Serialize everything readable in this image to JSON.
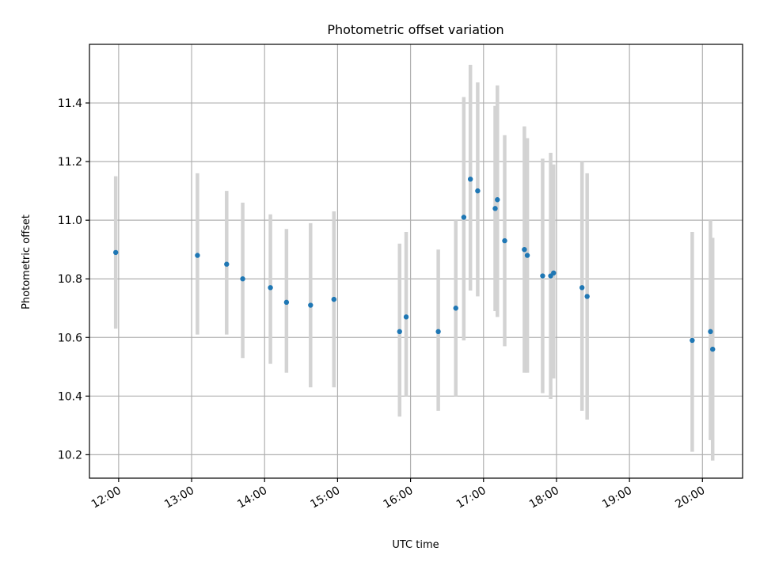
{
  "chart_data": {
    "type": "scatter",
    "title": "Photometric offset variation",
    "xlabel": "UTC time",
    "ylabel": "Photometric offset",
    "x_unit": "hours UTC",
    "xlim": [
      11.6,
      20.55
    ],
    "ylim": [
      10.12,
      11.6
    ],
    "grid": true,
    "x_ticks": [
      12,
      13,
      14,
      15,
      16,
      17,
      18,
      19,
      20
    ],
    "x_tick_labels": [
      "12:00",
      "13:00",
      "14:00",
      "15:00",
      "16:00",
      "17:00",
      "18:00",
      "19:00",
      "20:00"
    ],
    "y_ticks": [
      10.2,
      10.4,
      10.6,
      10.8,
      11.0,
      11.2,
      11.4
    ],
    "y_tick_labels": [
      "10.2",
      "10.4",
      "10.6",
      "10.8",
      "11.0",
      "11.2",
      "11.4"
    ],
    "point_color": "#1f77b4",
    "errorbar_color": "#d3d3d3",
    "points": [
      {
        "x": 11.96,
        "y": 10.89,
        "err_low": 10.63,
        "err_high": 11.15
      },
      {
        "x": 13.08,
        "y": 10.88,
        "err_low": 10.61,
        "err_high": 11.16
      },
      {
        "x": 13.48,
        "y": 10.85,
        "err_low": 10.61,
        "err_high": 11.1
      },
      {
        "x": 13.7,
        "y": 10.8,
        "err_low": 10.53,
        "err_high": 11.06
      },
      {
        "x": 14.08,
        "y": 10.77,
        "err_low": 10.51,
        "err_high": 11.02
      },
      {
        "x": 14.3,
        "y": 10.72,
        "err_low": 10.48,
        "err_high": 10.97
      },
      {
        "x": 14.63,
        "y": 10.71,
        "err_low": 10.43,
        "err_high": 10.99
      },
      {
        "x": 14.95,
        "y": 10.73,
        "err_low": 10.43,
        "err_high": 11.03
      },
      {
        "x": 15.85,
        "y": 10.62,
        "err_low": 10.33,
        "err_high": 10.92
      },
      {
        "x": 15.94,
        "y": 10.67,
        "err_low": 10.4,
        "err_high": 10.96
      },
      {
        "x": 16.38,
        "y": 10.62,
        "err_low": 10.35,
        "err_high": 10.9
      },
      {
        "x": 16.62,
        "y": 10.7,
        "err_low": 10.4,
        "err_high": 11.0
      },
      {
        "x": 16.73,
        "y": 11.01,
        "err_low": 10.59,
        "err_high": 11.42
      },
      {
        "x": 16.82,
        "y": 11.14,
        "err_low": 10.76,
        "err_high": 11.53
      },
      {
        "x": 16.92,
        "y": 11.1,
        "err_low": 10.74,
        "err_high": 11.47
      },
      {
        "x": 17.16,
        "y": 11.04,
        "err_low": 10.69,
        "err_high": 11.39
      },
      {
        "x": 17.19,
        "y": 11.07,
        "err_low": 10.67,
        "err_high": 11.46
      },
      {
        "x": 17.29,
        "y": 10.93,
        "err_low": 10.57,
        "err_high": 11.29
      },
      {
        "x": 17.56,
        "y": 10.9,
        "err_low": 10.48,
        "err_high": 11.32
      },
      {
        "x": 17.6,
        "y": 10.88,
        "err_low": 10.48,
        "err_high": 11.28
      },
      {
        "x": 17.81,
        "y": 10.81,
        "err_low": 10.41,
        "err_high": 11.21
      },
      {
        "x": 17.92,
        "y": 10.81,
        "err_low": 10.39,
        "err_high": 11.23
      },
      {
        "x": 17.96,
        "y": 10.82,
        "err_low": 10.46,
        "err_high": 11.19
      },
      {
        "x": 18.35,
        "y": 10.77,
        "err_low": 10.35,
        "err_high": 11.2
      },
      {
        "x": 18.42,
        "y": 10.74,
        "err_low": 10.32,
        "err_high": 11.16
      },
      {
        "x": 19.86,
        "y": 10.59,
        "err_low": 10.21,
        "err_high": 10.96
      },
      {
        "x": 20.11,
        "y": 10.62,
        "err_low": 10.25,
        "err_high": 11.0
      },
      {
        "x": 20.14,
        "y": 10.56,
        "err_low": 10.18,
        "err_high": 10.94
      }
    ]
  }
}
